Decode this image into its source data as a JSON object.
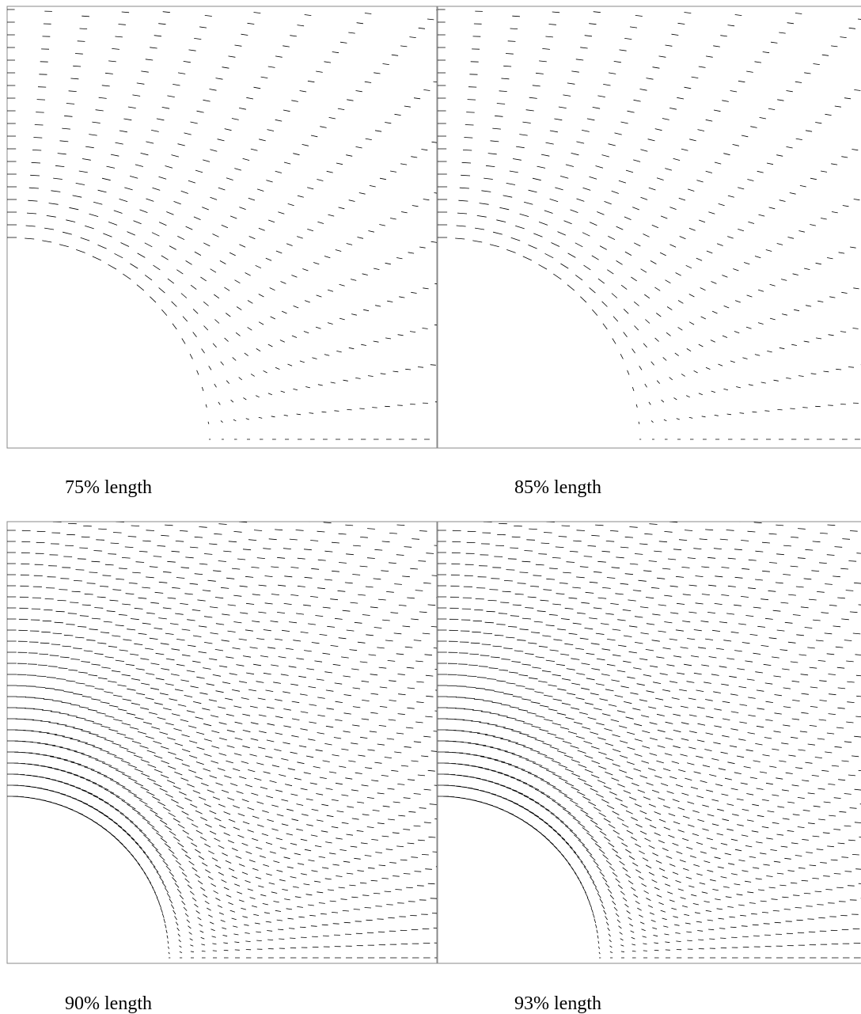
{
  "panels": [
    {
      "caption": "75% length"
    },
    {
      "caption": "85% length"
    },
    {
      "caption": "90% length"
    },
    {
      "caption": "93% length"
    }
  ]
}
